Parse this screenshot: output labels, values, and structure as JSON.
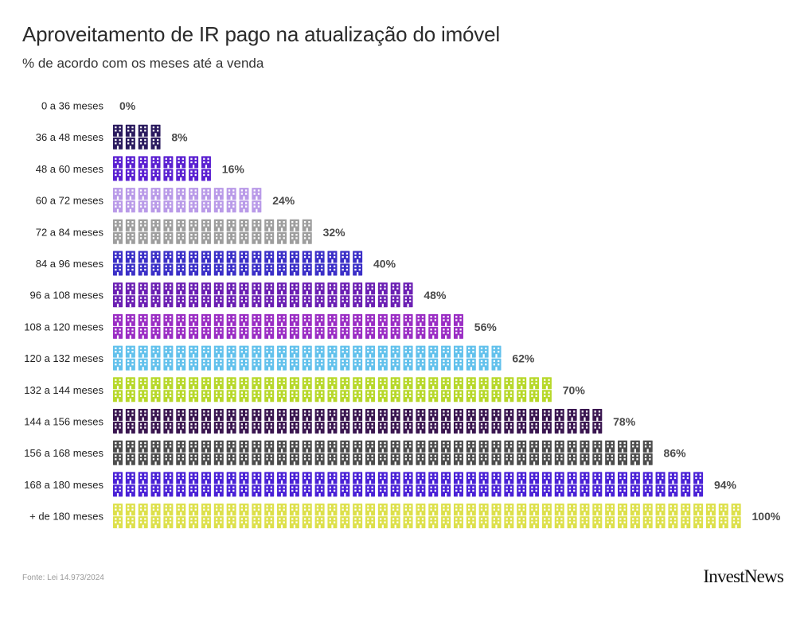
{
  "title": "Aproveitamento de IR pago na atualização do imóvel",
  "subtitle": "% de acordo com os meses até a venda",
  "source": "Fonte: Lei 14.973/2024",
  "logo": "InvestNews",
  "icon": "building-icon",
  "chart_data": {
    "type": "bar",
    "style": "pictogram",
    "categories": [
      "0 a 36 meses",
      "36 a 48 meses",
      "48 a 60 meses",
      "60 a  72 meses",
      "72 a 84 meses",
      "84 a 96 meses",
      "96 a 108 meses",
      "108 a 120 meses",
      "120 a 132 meses",
      "132 a 144 meses",
      "144 a 156 meses",
      "156 a 168 meses",
      "168 a 180 meses",
      "+ de 180 meses"
    ],
    "values": [
      0,
      8,
      16,
      24,
      32,
      40,
      48,
      56,
      62,
      70,
      78,
      86,
      94,
      100
    ],
    "value_labels": [
      "0%",
      "8%",
      "16%",
      "24%",
      "32%",
      "40%",
      "48%",
      "56%",
      "62%",
      "70%",
      "78%",
      "86%",
      "94%",
      "100%"
    ],
    "colors": [
      "#2a1a5e",
      "#2a1a5e",
      "#5a1fd1",
      "#b99ae8",
      "#9e9e9e",
      "#3b2fc7",
      "#6b1fb3",
      "#9a2dc4",
      "#62c1ec",
      "#b7d82a",
      "#3a1650",
      "#4d4d4d",
      "#4a21d6",
      "#dde04a"
    ],
    "xlim": [
      0,
      100
    ],
    "grid": false,
    "legend": "none"
  }
}
